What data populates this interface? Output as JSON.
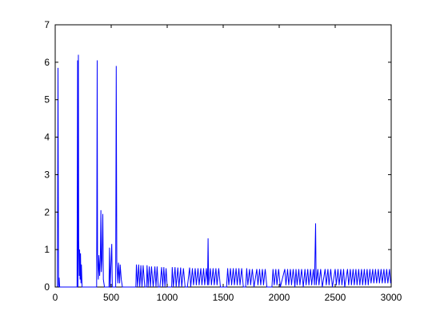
{
  "chart_data": {
    "type": "line",
    "x": [
      0,
      20,
      25,
      30,
      35,
      40,
      195,
      200,
      203,
      207,
      210,
      215,
      218,
      222,
      226,
      230,
      234,
      240,
      370,
      375,
      378,
      385,
      390,
      397,
      403,
      408,
      412,
      418,
      425,
      430,
      440,
      480,
      485,
      490,
      505,
      510,
      540,
      545,
      550,
      560,
      565,
      575,
      580,
      590,
      600,
      720,
      725,
      735,
      745,
      755,
      765,
      775,
      785,
      800,
      815,
      820,
      830,
      840,
      850,
      860,
      875,
      890,
      900,
      910,
      920,
      935,
      950,
      960,
      970,
      980,
      990,
      1000,
      1040,
      1045,
      1055,
      1070,
      1080,
      1095,
      1105,
      1120,
      1130,
      1145,
      1160,
      1180,
      1200,
      1210,
      1225,
      1235,
      1250,
      1260,
      1275,
      1285,
      1300,
      1310,
      1325,
      1335,
      1350,
      1360,
      1365,
      1370,
      1385,
      1395,
      1410,
      1420,
      1435,
      1445,
      1460,
      1475,
      1530,
      1540,
      1550,
      1565,
      1575,
      1590,
      1600,
      1615,
      1625,
      1640,
      1650,
      1665,
      1680,
      1700,
      1710,
      1720,
      1735,
      1745,
      1760,
      1775,
      1800,
      1810,
      1825,
      1835,
      1850,
      1860,
      1875,
      1890,
      1935,
      1945,
      1955,
      1970,
      1980,
      1995,
      2010,
      2050,
      2060,
      2075,
      2085,
      2100,
      2110,
      2125,
      2140,
      2150,
      2160,
      2175,
      2185,
      2200,
      2215,
      2230,
      2240,
      2255,
      2265,
      2280,
      2290,
      2305,
      2315,
      2325,
      2330,
      2345,
      2355,
      2370,
      2385,
      2410,
      2420,
      2435,
      2445,
      2460,
      2475,
      2500,
      2510,
      2525,
      2535,
      2550,
      2560,
      2575,
      2585,
      2610,
      2620,
      2635,
      2645,
      2660,
      2670,
      2685,
      2695,
      2710,
      2720,
      2735,
      2745,
      2760,
      2770,
      2785,
      2795,
      2810,
      2820,
      2835,
      2845,
      2860,
      2870,
      2885,
      2895,
      2910,
      2920,
      2935,
      2945,
      2960,
      2970,
      2985,
      2995
    ],
    "series": [
      {
        "color": "#0000ff",
        "values": [
          0,
          0,
          5.85,
          0,
          0.25,
          0,
          0,
          6.05,
          0,
          6.2,
          1.25,
          0.3,
          1.0,
          0.2,
          0.9,
          0.1,
          0.6,
          0,
          0,
          6.05,
          0.85,
          0.2,
          0.85,
          0.3,
          0.8,
          2.05,
          0.4,
          0.75,
          1.95,
          0.2,
          0,
          0,
          1.05,
          0,
          1.15,
          0,
          0,
          5.9,
          0.65,
          0.1,
          0.65,
          0.1,
          0.6,
          0.2,
          0,
          0,
          0.6,
          0,
          0.6,
          0,
          0.58,
          0,
          0.58,
          0,
          0,
          0.58,
          0,
          0.55,
          0,
          0.55,
          0,
          0.55,
          0,
          0.55,
          0,
          0,
          0.53,
          0,
          0.53,
          0,
          0.5,
          0,
          0,
          0.53,
          0,
          0.53,
          0,
          0.52,
          0,
          0.52,
          0,
          0.5,
          0,
          0,
          0.52,
          0,
          0.5,
          0.05,
          0.5,
          0.05,
          0.5,
          0.05,
          0.5,
          0.05,
          0.5,
          0.05,
          0.5,
          0.05,
          1.3,
          0.05,
          0.5,
          0.05,
          0.5,
          0.05,
          0.5,
          0.05,
          0.5,
          0,
          0,
          0.5,
          0.05,
          0.5,
          0.05,
          0.5,
          0.05,
          0.5,
          0.05,
          0.5,
          0.05,
          0.5,
          0,
          0,
          0.5,
          0.05,
          0.48,
          0.05,
          0.48,
          0,
          0.48,
          0.05,
          0.48,
          0.05,
          0.48,
          0.05,
          0.48,
          0,
          0,
          0.48,
          0.05,
          0.48,
          0.05,
          0.48,
          0,
          0.48,
          0.05,
          0.48,
          0.05,
          0.48,
          0.05,
          0.48,
          0,
          0.48,
          0.05,
          0.48,
          0.05,
          0.48,
          0,
          0.48,
          0.05,
          0.48,
          0.05,
          0.48,
          0.05,
          0.48,
          0.05,
          1.7,
          0.05,
          0.48,
          0.05,
          0.48,
          0,
          0.48,
          0.05,
          0.48,
          0.05,
          0.48,
          0,
          0.48,
          0.05,
          0.48,
          0.05,
          0.48,
          0.05,
          0.48,
          0,
          0.48,
          0.05,
          0.48,
          0.05,
          0.48,
          0.05,
          0.48,
          0.05,
          0.48,
          0.05,
          0.48,
          0.05,
          0.48,
          0.05,
          0.48,
          0.05,
          0.48,
          0.1,
          0.48,
          0.1,
          0.48,
          0.1,
          0.48,
          0.1,
          0.48,
          0.1,
          0.48,
          0.1,
          0.48,
          0.1,
          0.48,
          0.1
        ]
      }
    ],
    "xlim": [
      0,
      3000
    ],
    "ylim": [
      0,
      7
    ],
    "xticks": [
      0,
      500,
      1000,
      1500,
      2000,
      2500,
      3000
    ],
    "yticks": [
      0,
      1,
      2,
      3,
      4,
      5,
      6,
      7
    ],
    "grid": false
  }
}
